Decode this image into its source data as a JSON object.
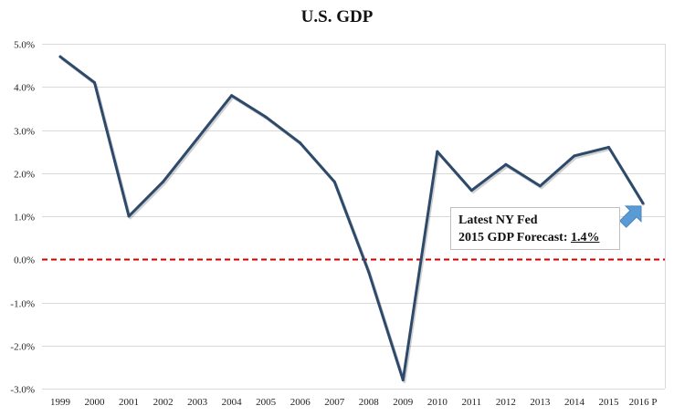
{
  "colors": {
    "line": "#2e4a6b",
    "zero_line": "#cc0000",
    "grid": "#d9d9d9",
    "arrow": "#5b9bd5"
  },
  "chart_data": {
    "type": "line",
    "title": "U.S. GDP",
    "xlabel": "",
    "ylabel": "",
    "categories": [
      "1999",
      "2000",
      "2001",
      "2002",
      "2003",
      "2004",
      "2005",
      "2006",
      "2007",
      "2008",
      "2009",
      "2010",
      "2011",
      "2012",
      "2013",
      "2014",
      "2015",
      "2016 P"
    ],
    "series": [
      {
        "values": [
          4.7,
          4.1,
          1.0,
          1.8,
          2.8,
          3.8,
          3.3,
          2.7,
          1.8,
          -0.3,
          -2.8,
          2.5,
          1.6,
          2.2,
          1.7,
          2.4,
          2.6,
          1.3
        ]
      }
    ],
    "ylim": [
      -3.0,
      5.0
    ],
    "yticks": [
      5.0,
      4.0,
      3.0,
      2.0,
      1.0,
      0.0,
      -1.0,
      -2.0,
      -3.0
    ],
    "ytick_labels": [
      "5.0%",
      "4.0%",
      "3.0%",
      "2.0%",
      "1.0%",
      "0.0%",
      "-1.0%",
      "-2.0%",
      "-3.0%"
    ],
    "grid": true,
    "reference_line": {
      "y": 0.0,
      "style": "dashed"
    },
    "annotation": {
      "line1": "Latest NY Fed",
      "line2_prefix": "2015 GDP Forecast: ",
      "line2_value": "1.4%",
      "points_to": "2016 P"
    }
  }
}
